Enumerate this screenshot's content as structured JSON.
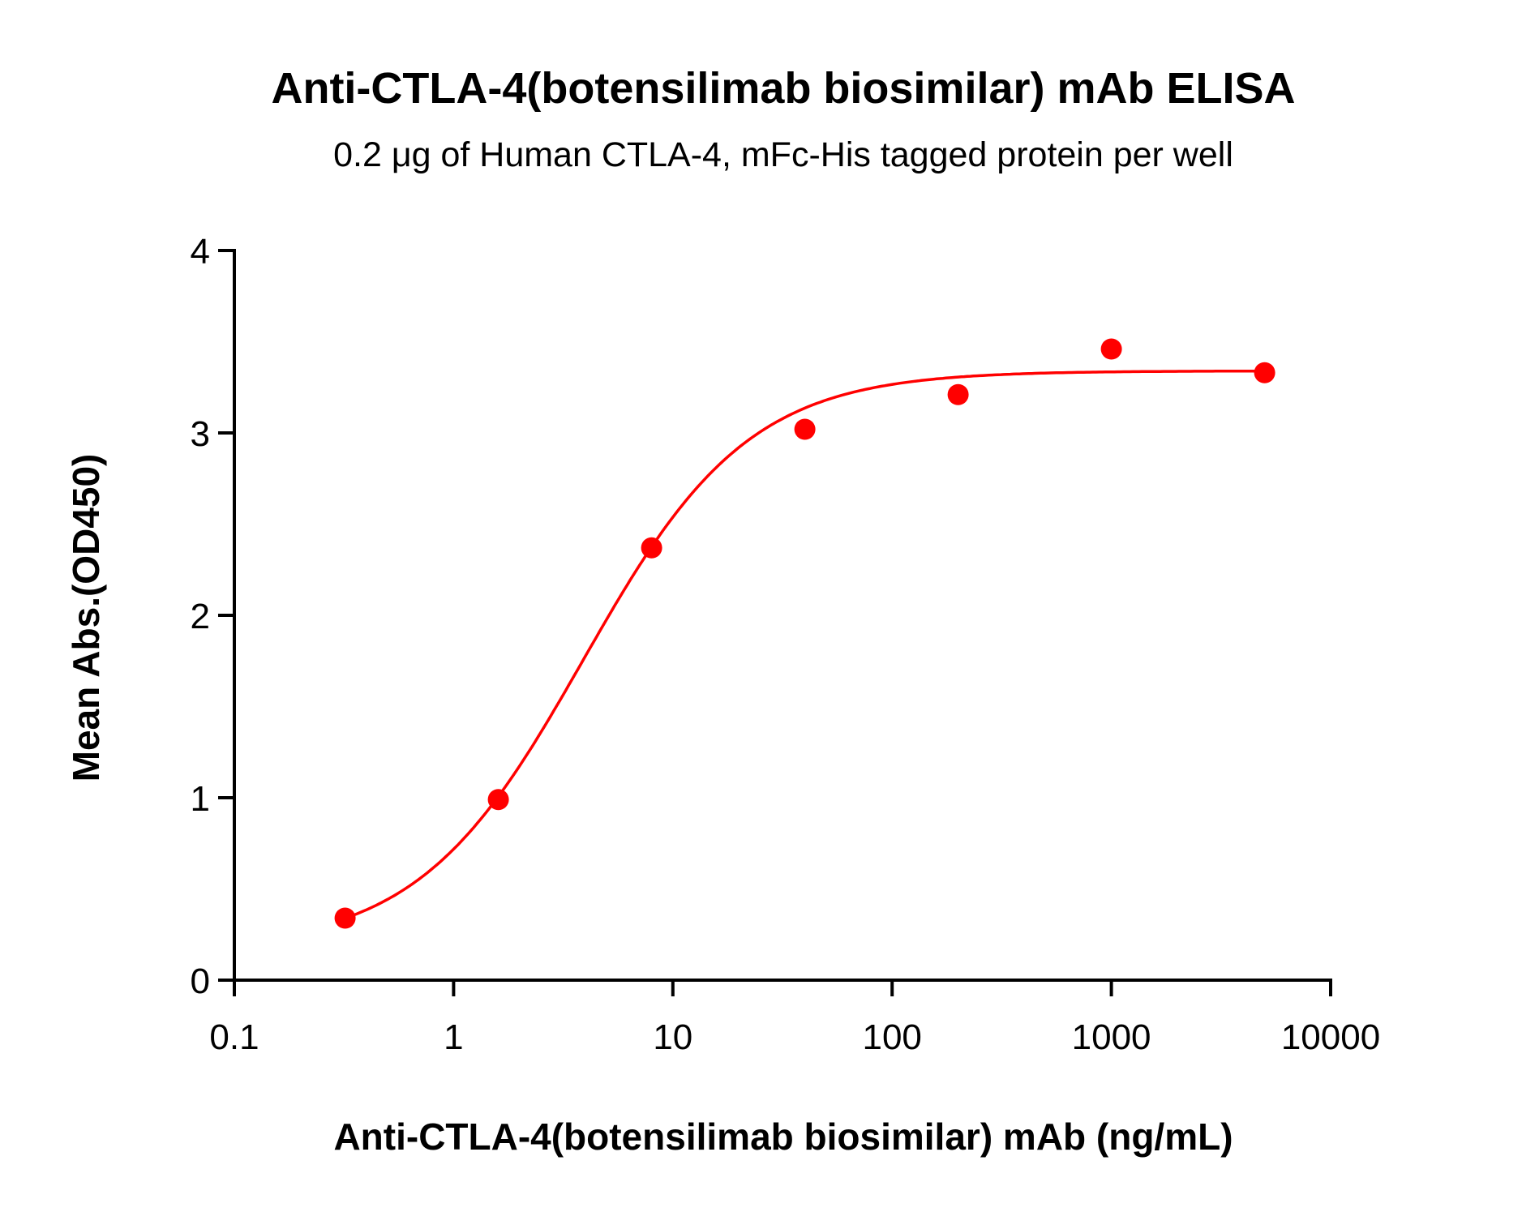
{
  "chart_data": {
    "type": "scatter",
    "title": "Anti-CTLA-4(botensilimab biosimilar) mAb ELISA",
    "subtitle": "0.2 μg of Human CTLA-4, mFc-His tagged protein per well",
    "xlabel": "Anti-CTLA-4(botensilimab biosimilar) mAb (ng/mL)",
    "ylabel": "Mean Abs.(OD450)",
    "xscale": "log",
    "xlim": [
      0.1,
      10000
    ],
    "ylim": [
      0,
      4
    ],
    "xticks": [
      "0.1",
      "1",
      "10",
      "100",
      "1000",
      "10000"
    ],
    "yticks": [
      "0",
      "1",
      "2",
      "3",
      "4"
    ],
    "grid": false,
    "color": "#ff0000",
    "fit_curve": "four-parameter logistic",
    "series": [
      {
        "x": [
          0.32,
          1.6,
          8,
          40,
          200,
          1000,
          5000
        ],
        "y": [
          0.34,
          0.99,
          2.37,
          3.02,
          3.21,
          3.46,
          3.33
        ]
      }
    ]
  }
}
